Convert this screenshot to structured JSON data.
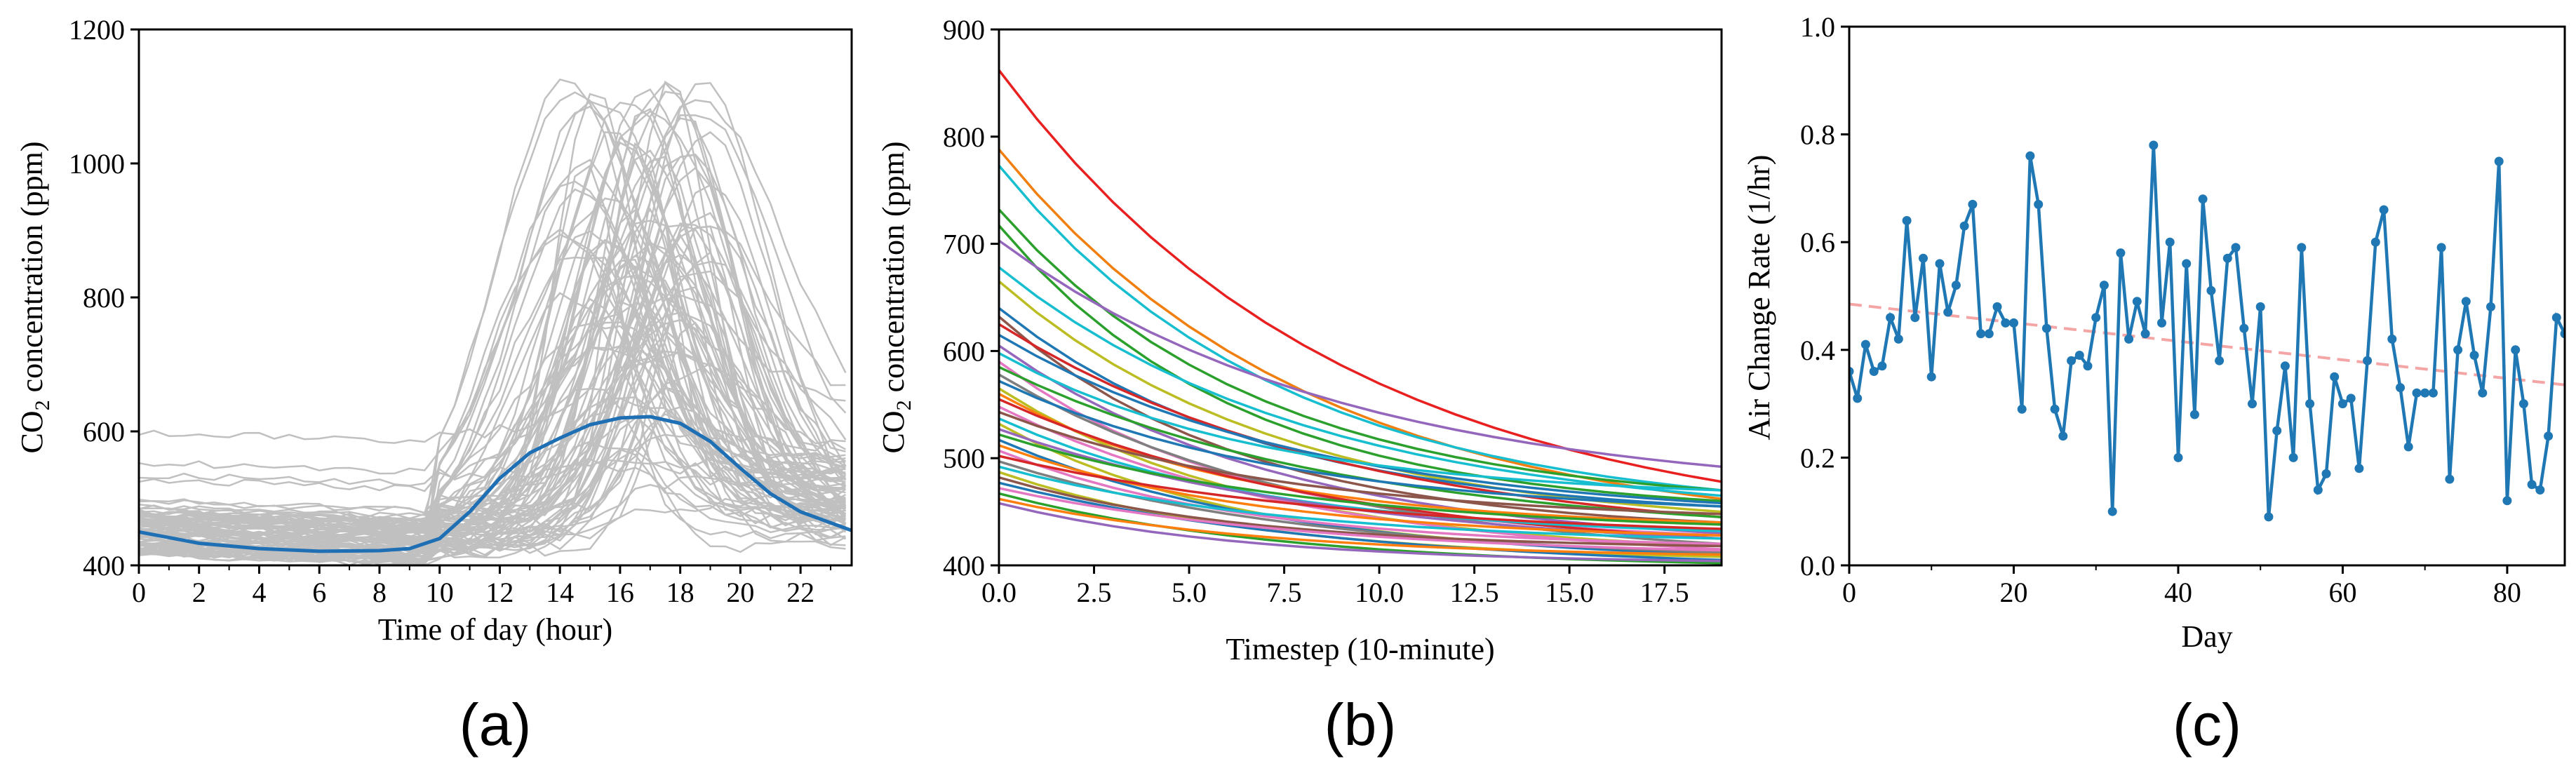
{
  "chart_data": [
    {
      "type": "line",
      "panel_label": "(a)",
      "xlabel": "Time of day (hour)",
      "ylabel_main": "CO",
      "ylabel_sub": "2",
      "ylabel_rest": " concentration (ppm)",
      "xlim": [
        0,
        23.7
      ],
      "ylim": [
        400,
        1200
      ],
      "xticks": [
        0,
        2,
        4,
        6,
        8,
        10,
        12,
        14,
        16,
        18,
        20,
        22
      ],
      "xticks_minor": [
        1,
        3,
        5,
        7,
        9,
        11,
        13,
        15,
        17,
        19,
        21,
        23
      ],
      "yticks": [
        400,
        600,
        800,
        1000,
        1200
      ],
      "background_series": {
        "count": 90,
        "color": "#c0c0c0",
        "description_values": "daily CO2 profiles, baseline ~420-610 ppm, peak between hour 13 and 19 up to ~1130 ppm"
      },
      "mean_series": {
        "name": "mean",
        "color": "#1f6fb4",
        "x": [
          0,
          2,
          4,
          6,
          8,
          9,
          10,
          11,
          12,
          13,
          14,
          15,
          16,
          17,
          18,
          19,
          20,
          21,
          22,
          23.7
        ],
        "y": [
          450,
          433,
          425,
          421,
          422,
          425,
          440,
          480,
          530,
          568,
          590,
          610,
          620,
          622,
          612,
          585,
          545,
          507,
          480,
          452
        ]
      }
    },
    {
      "type": "line",
      "panel_label": "(b)",
      "xlabel": "Timestep (10-minute)",
      "ylabel_main": "CO",
      "ylabel_sub": "2",
      "ylabel_rest": " concentration (ppm)",
      "xlim": [
        0,
        19
      ],
      "ylim": [
        400,
        900
      ],
      "xticks": [
        0.0,
        2.5,
        5.0,
        7.5,
        10.0,
        12.5,
        15.0,
        17.5
      ],
      "xtick_labels": [
        "0.0",
        "2.5",
        "5.0",
        "7.5",
        "10.0",
        "12.5",
        "15.0",
        "17.5"
      ],
      "yticks": [
        400,
        500,
        600,
        700,
        800,
        900
      ],
      "series": [
        {
          "start": 862,
          "end": 478,
          "color": "#e82020"
        },
        {
          "start": 788,
          "end": 462,
          "color": "#f07f10"
        },
        {
          "start": 773,
          "end": 470,
          "color": "#17becf"
        },
        {
          "start": 732,
          "end": 470,
          "color": "#2ca02c"
        },
        {
          "start": 717,
          "end": 460,
          "color": "#2ca02c"
        },
        {
          "start": 703,
          "end": 492,
          "color": "#9467bd"
        },
        {
          "start": 678,
          "end": 465,
          "color": "#17becf"
        },
        {
          "start": 665,
          "end": 450,
          "color": "#bcbd22"
        },
        {
          "start": 640,
          "end": 455,
          "color": "#1f77b4"
        },
        {
          "start": 632,
          "end": 440,
          "color": "#8c564b"
        },
        {
          "start": 625,
          "end": 445,
          "color": "#d62728"
        },
        {
          "start": 615,
          "end": 458,
          "color": "#1f77b4"
        },
        {
          "start": 605,
          "end": 430,
          "color": "#9467bd"
        },
        {
          "start": 598,
          "end": 470,
          "color": "#17becf"
        },
        {
          "start": 590,
          "end": 428,
          "color": "#e377c2"
        },
        {
          "start": 585,
          "end": 445,
          "color": "#2ca02c"
        },
        {
          "start": 578,
          "end": 420,
          "color": "#7f7f7f"
        },
        {
          "start": 572,
          "end": 455,
          "color": "#1f77b4"
        },
        {
          "start": 565,
          "end": 418,
          "color": "#bcbd22"
        },
        {
          "start": 560,
          "end": 440,
          "color": "#ff7f0e"
        },
        {
          "start": 555,
          "end": 425,
          "color": "#d62728"
        },
        {
          "start": 548,
          "end": 415,
          "color": "#e377c2"
        },
        {
          "start": 543,
          "end": 448,
          "color": "#8c564b"
        },
        {
          "start": 537,
          "end": 432,
          "color": "#17becf"
        },
        {
          "start": 532,
          "end": 412,
          "color": "#bcbd22"
        },
        {
          "start": 527,
          "end": 425,
          "color": "#9467bd"
        },
        {
          "start": 522,
          "end": 438,
          "color": "#2ca02c"
        },
        {
          "start": 517,
          "end": 410,
          "color": "#1f77b4"
        },
        {
          "start": 512,
          "end": 428,
          "color": "#ff7f0e"
        },
        {
          "start": 507,
          "end": 420,
          "color": "#e377c2"
        },
        {
          "start": 502,
          "end": 434,
          "color": "#d62728"
        },
        {
          "start": 497,
          "end": 412,
          "color": "#7f7f7f"
        },
        {
          "start": 492,
          "end": 425,
          "color": "#17becf"
        },
        {
          "start": 487,
          "end": 408,
          "color": "#bcbd22"
        },
        {
          "start": 482,
          "end": 418,
          "color": "#8c564b"
        },
        {
          "start": 477,
          "end": 405,
          "color": "#1f77b4"
        },
        {
          "start": 472,
          "end": 414,
          "color": "#e377c2"
        },
        {
          "start": 467,
          "end": 402,
          "color": "#2ca02c"
        },
        {
          "start": 462,
          "end": 410,
          "color": "#ff7f0e"
        },
        {
          "start": 458,
          "end": 404,
          "color": "#9467bd"
        }
      ]
    },
    {
      "type": "line",
      "panel_label": "(c)",
      "xlabel": "Day",
      "ylabel": "Air Change Rate (1/hr)",
      "xlim": [
        0,
        87
      ],
      "ylim": [
        0.0,
        1.0
      ],
      "xticks": [
        0,
        20,
        40,
        60,
        80
      ],
      "xticks_minor": [
        10,
        30,
        50,
        70
      ],
      "yticks": [
        0.0,
        0.2,
        0.4,
        0.6,
        0.8,
        1.0
      ],
      "ytick_labels": [
        "0.0",
        "0.2",
        "0.4",
        "0.6",
        "0.8",
        "1.0"
      ],
      "series_color": "#1f77b4",
      "trend_color": "#f4a6a6",
      "trend": {
        "x": [
          0,
          87
        ],
        "y": [
          0.485,
          0.335
        ]
      },
      "values": [
        0.36,
        0.31,
        0.41,
        0.36,
        0.37,
        0.46,
        0.42,
        0.64,
        0.46,
        0.57,
        0.35,
        0.56,
        0.47,
        0.52,
        0.63,
        0.67,
        0.43,
        0.43,
        0.48,
        0.45,
        0.45,
        0.29,
        0.76,
        0.67,
        0.44,
        0.29,
        0.24,
        0.38,
        0.39,
        0.37,
        0.46,
        0.52,
        0.1,
        0.58,
        0.42,
        0.49,
        0.43,
        0.78,
        0.45,
        0.6,
        0.2,
        0.56,
        0.28,
        0.68,
        0.51,
        0.38,
        0.57,
        0.59,
        0.44,
        0.3,
        0.48,
        0.09,
        0.25,
        0.37,
        0.2,
        0.59,
        0.3,
        0.14,
        0.17,
        0.35,
        0.3,
        0.31,
        0.18,
        0.38,
        0.6,
        0.66,
        0.42,
        0.33,
        0.22,
        0.32,
        0.32,
        0.32,
        0.59,
        0.16,
        0.4,
        0.49,
        0.39,
        0.32,
        0.48,
        0.75,
        0.12,
        0.4,
        0.3,
        0.15,
        0.14,
        0.24,
        0.46,
        0.43
      ]
    }
  ]
}
